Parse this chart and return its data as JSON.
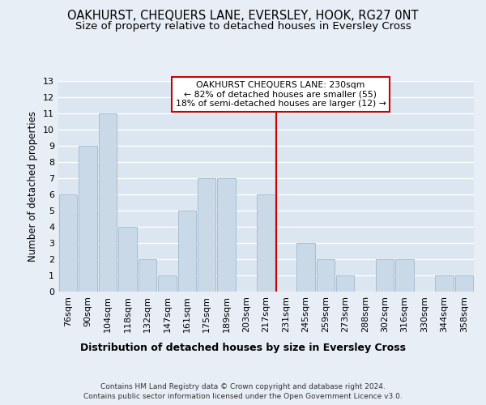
{
  "title": "OAKHURST, CHEQUERS LANE, EVERSLEY, HOOK, RG27 0NT",
  "subtitle": "Size of property relative to detached houses in Eversley Cross",
  "xlabel": "Distribution of detached houses by size in Eversley Cross",
  "ylabel": "Number of detached properties",
  "footer": "Contains HM Land Registry data © Crown copyright and database right 2024.\nContains public sector information licensed under the Open Government Licence v3.0.",
  "categories": [
    "76sqm",
    "90sqm",
    "104sqm",
    "118sqm",
    "132sqm",
    "147sqm",
    "161sqm",
    "175sqm",
    "189sqm",
    "203sqm",
    "217sqm",
    "231sqm",
    "245sqm",
    "259sqm",
    "273sqm",
    "288sqm",
    "302sqm",
    "316sqm",
    "330sqm",
    "344sqm",
    "358sqm"
  ],
  "values": [
    6,
    9,
    11,
    4,
    2,
    1,
    5,
    7,
    7,
    0,
    6,
    0,
    3,
    2,
    1,
    0,
    2,
    2,
    0,
    1,
    1
  ],
  "bar_color": "#c9d9e8",
  "bar_edge_color": "#a0b8cc",
  "vline_x_index": 11,
  "vline_color": "#cc0000",
  "annotation_text": "OAKHURST CHEQUERS LANE: 230sqm\n← 82% of detached houses are smaller (55)\n18% of semi-detached houses are larger (12) →",
  "annotation_box_color": "#ffffff",
  "annotation_box_edge_color": "#cc0000",
  "ylim": [
    0,
    13
  ],
  "yticks": [
    0,
    1,
    2,
    3,
    4,
    5,
    6,
    7,
    8,
    9,
    10,
    11,
    12,
    13
  ],
  "background_color": "#e8eef5",
  "axes_background_color": "#dce6f0",
  "grid_color": "#ffffff",
  "title_fontsize": 10.5,
  "subtitle_fontsize": 9.5,
  "tick_fontsize": 8,
  "ylabel_fontsize": 8.5,
  "xlabel_fontsize": 9,
  "footer_fontsize": 6.5
}
